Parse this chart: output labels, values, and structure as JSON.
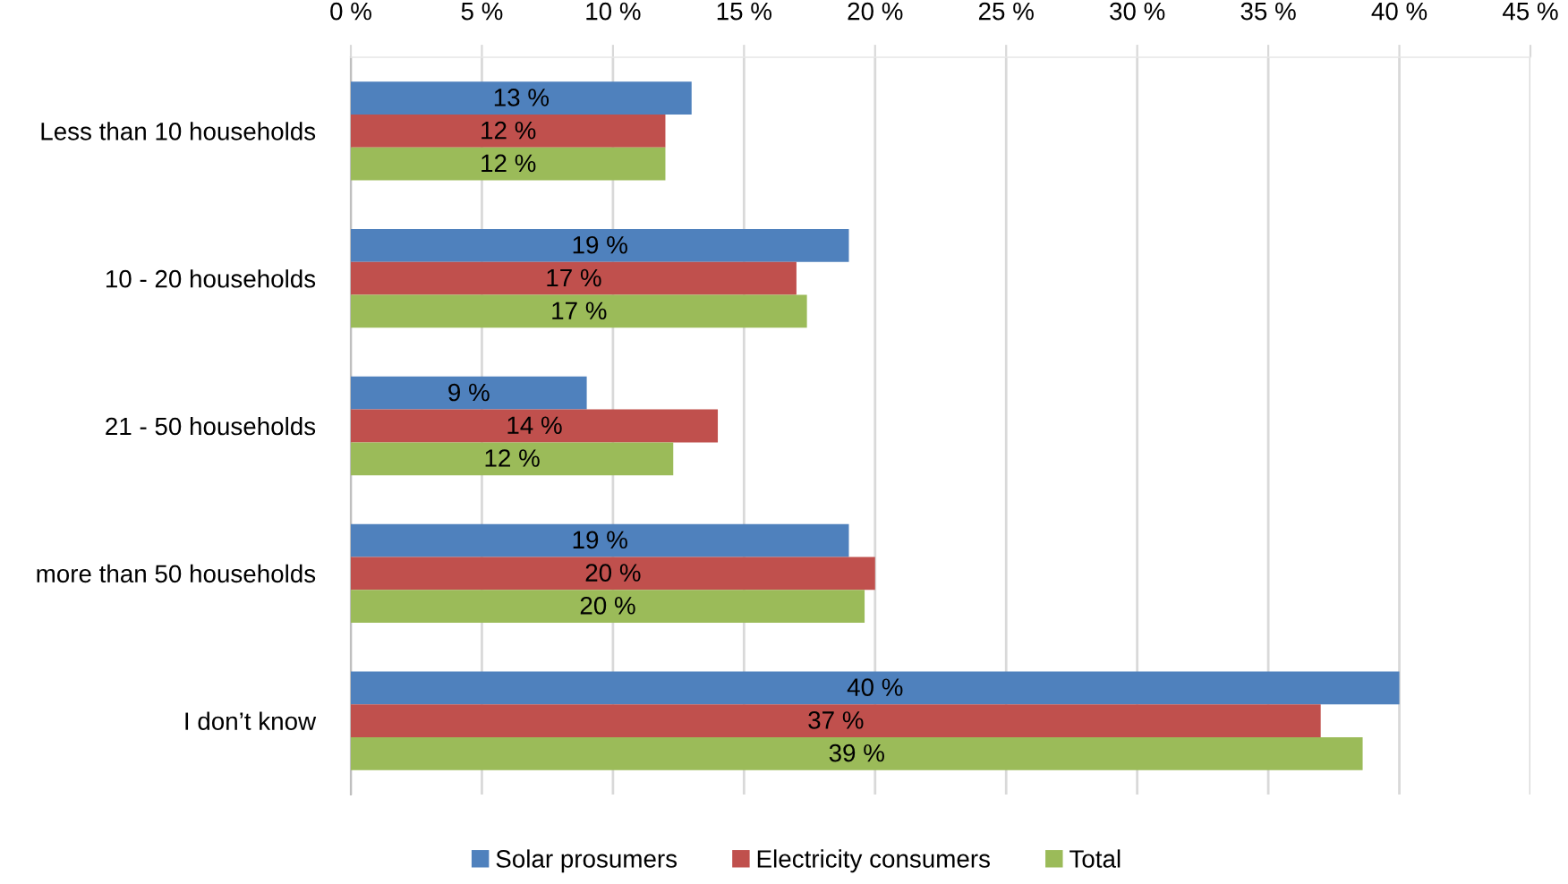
{
  "chart_data": {
    "type": "bar",
    "orientation": "horizontal",
    "categories": [
      "Less than 10 households",
      "10 - 20 households",
      "21 - 50 households",
      "more than 50 households",
      "I don’t know"
    ],
    "series": [
      {
        "name": "Solar prosumers",
        "color": "#4f81bd",
        "values": [
          13,
          19,
          9,
          19,
          40
        ],
        "value_labels": [
          "13 %",
          "19 %",
          "9 %",
          "19 %",
          "40 %"
        ]
      },
      {
        "name": "Electricity consumers",
        "color": "#c0504d",
        "values": [
          12,
          17,
          14,
          20,
          37
        ],
        "value_labels": [
          "12 %",
          "17 %",
          "14 %",
          "20 %",
          "37 %"
        ]
      },
      {
        "name": "Total",
        "color": "#9bbb59",
        "values": [
          12,
          17.4,
          12.3,
          19.6,
          38.6
        ],
        "value_labels": [
          "12 %",
          "17 %",
          "12 %",
          "20 %",
          "39 %"
        ]
      }
    ],
    "xlim": [
      0,
      45
    ],
    "xticks": [
      {
        "value": 0,
        "label": "0 %"
      },
      {
        "value": 5,
        "label": "5 %"
      },
      {
        "value": 10,
        "label": "10 %"
      },
      {
        "value": 15,
        "label": "15 %"
      },
      {
        "value": 20,
        "label": "20 %"
      },
      {
        "value": 25,
        "label": "25 %"
      },
      {
        "value": 30,
        "label": "30 %"
      },
      {
        "value": 35,
        "label": "35 %"
      },
      {
        "value": 40,
        "label": "40 %"
      },
      {
        "value": 45,
        "label": "45 %"
      }
    ],
    "grid": "x",
    "legend": "bottom"
  }
}
